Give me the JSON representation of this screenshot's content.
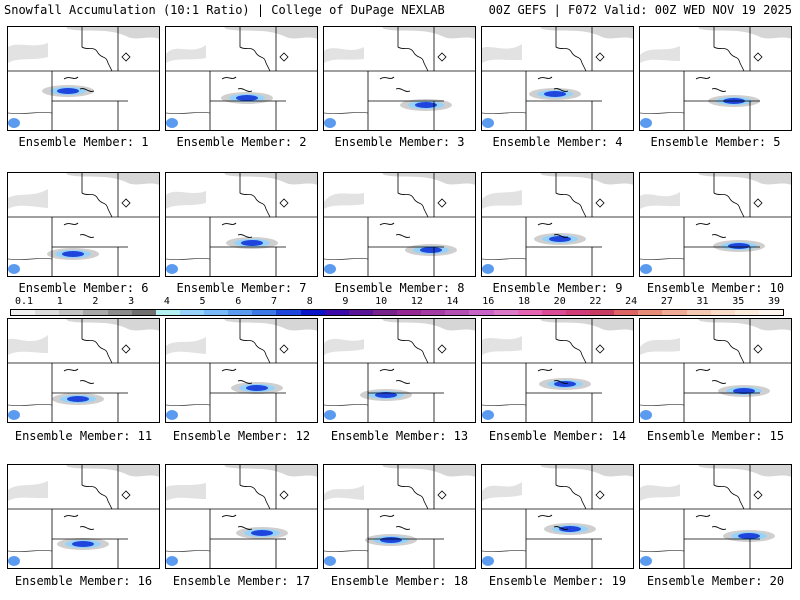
{
  "header": {
    "title": "Snowfall Accumulation (10:1 Ratio) | College of DuPage NEXLAB",
    "run_info": "00Z GEFS | F072 Valid: 00Z WED NOV 19 2025"
  },
  "members": [
    {
      "label": "Ensemble Member: 1"
    },
    {
      "label": "Ensemble Member: 2"
    },
    {
      "label": "Ensemble Member: 3"
    },
    {
      "label": "Ensemble Member: 4"
    },
    {
      "label": "Ensemble Member: 5"
    },
    {
      "label": "Ensemble Member: 6"
    },
    {
      "label": "Ensemble Member: 7"
    },
    {
      "label": "Ensemble Member: 8"
    },
    {
      "label": "Ensemble Member: 9"
    },
    {
      "label": "Ensemble Member: 10"
    },
    {
      "label": "Ensemble Member: 11"
    },
    {
      "label": "Ensemble Member: 12"
    },
    {
      "label": "Ensemble Member: 13"
    },
    {
      "label": "Ensemble Member: 14"
    },
    {
      "label": "Ensemble Member: 15"
    },
    {
      "label": "Ensemble Member: 16"
    },
    {
      "label": "Ensemble Member: 17"
    },
    {
      "label": "Ensemble Member: 18"
    },
    {
      "label": "Ensemble Member: 19"
    },
    {
      "label": "Ensemble Member: 20"
    }
  ],
  "colorbar": {
    "labels": [
      "0.1",
      "1",
      "2",
      "3",
      "4",
      "5",
      "6",
      "7",
      "8",
      "9",
      "10",
      "12",
      "14",
      "16",
      "18",
      "20",
      "22",
      "24",
      "27",
      "31",
      "35",
      "39"
    ],
    "colors": [
      "#f0f0f0",
      "#dcdcdc",
      "#c4c4c4",
      "#a8a8a8",
      "#8c8c8c",
      "#707070",
      "#b4f0f0",
      "#96d2fa",
      "#78b9fa",
      "#5a9bf0",
      "#3c78e6",
      "#1e46dc",
      "#0a14c8",
      "#3c0aaa",
      "#5a1496",
      "#78238c",
      "#962896",
      "#a53ca5",
      "#b450b4",
      "#c864c8",
      "#dc78c8",
      "#e664b4",
      "#dc4b96",
      "#d23c78",
      "#c83c64",
      "#dc6464",
      "#e68c78",
      "#f0aa96",
      "#f5c8b4",
      "#fadcc8",
      "#fcecdc",
      "#fef6ee"
    ]
  }
}
